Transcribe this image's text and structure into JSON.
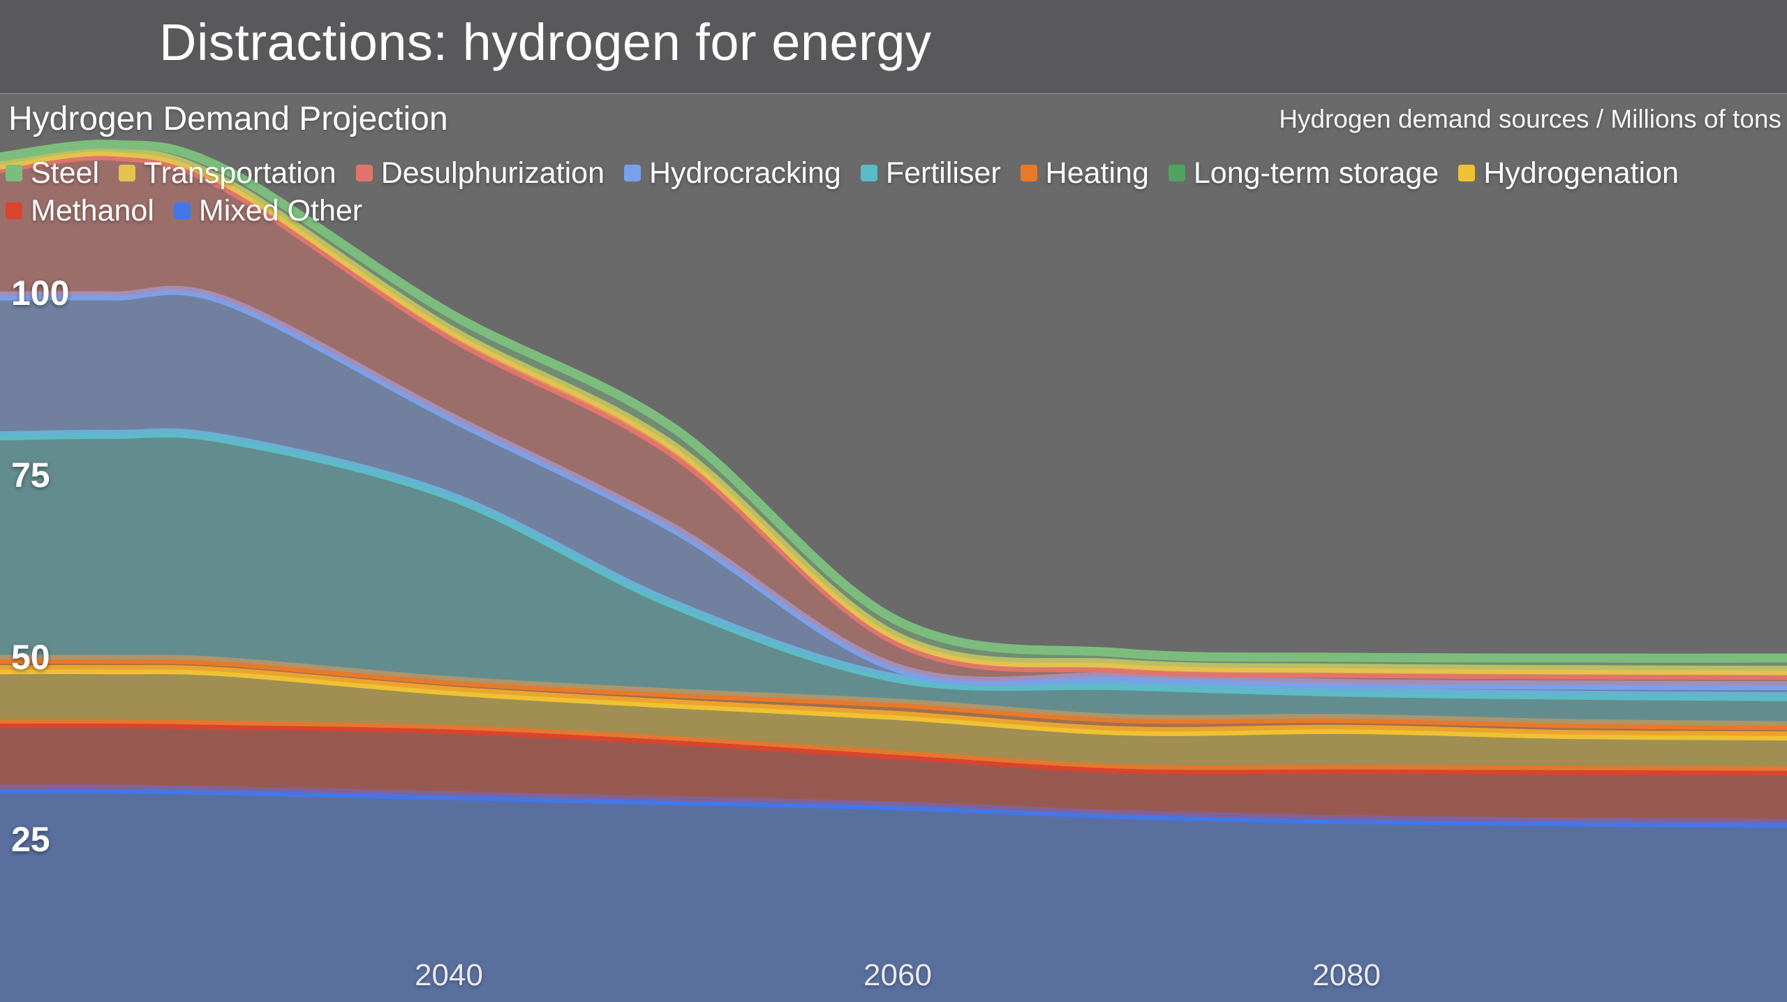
{
  "header": {
    "title": "Distractions: hydrogen for energy"
  },
  "chart": {
    "title": "Hydrogen Demand Projection",
    "units_label": "Hydrogen demand sources / Millions of tons",
    "colors": {
      "page_background": "#6A6A6A",
      "header_background": "#59595B",
      "header_divider": "#7E7E80",
      "text": "#FFFFFF",
      "tick_text": "#E9E9EC"
    }
  },
  "chart_data": {
    "type": "area",
    "stacked": true,
    "title": "Hydrogen Demand Projection",
    "xlabel": "",
    "ylabel": "Millions of tons",
    "x": [
      2020,
      2025,
      2030,
      2040,
      2050,
      2060,
      2070,
      2080,
      2090,
      2100
    ],
    "x_ticks": [
      2040,
      2060,
      2080
    ],
    "y_ticks": [
      25,
      50,
      75,
      100
    ],
    "xlim": [
      2020,
      2100
    ],
    "ylim": [
      0,
      127
    ],
    "grid": false,
    "legend_position": "top-left, two rows, first series stacks on top",
    "fill_opacity": 0.42,
    "line_width": 13,
    "series": [
      {
        "name": "Steel",
        "color": "#7CBD7E",
        "values": [
          1.1,
          1.0,
          1.7,
          2.2,
          2.5,
          2.2,
          1.5,
          1.5,
          1.6,
          1.7
        ]
      },
      {
        "name": "Transportation",
        "color": "#E5C14E",
        "values": [
          0.5,
          0.6,
          0.7,
          0.9,
          1.0,
          0.7,
          0.7,
          0.7,
          0.7,
          0.7
        ]
      },
      {
        "name": "Desulphurization",
        "color": "#E0756C",
        "values": [
          17.5,
          19.2,
          15.6,
          11.1,
          10.3,
          3.6,
          1.1,
          1.4,
          1.4,
          1.4
        ]
      },
      {
        "name": "Hydrocracking",
        "color": "#7BA0EA",
        "values": [
          19.2,
          19.0,
          19.0,
          10.9,
          10.4,
          1.4,
          1.2,
          1.2,
          1.4,
          1.5
        ]
      },
      {
        "name": "Fertiliser",
        "color": "#5ABCC4",
        "values": [
          30.7,
          30.9,
          30.6,
          25.4,
          12.2,
          3.4,
          4.5,
          3.6,
          3.9,
          4.0
        ]
      },
      {
        "name": "Heating",
        "color": "#E8792B",
        "values": [
          1.4,
          1.4,
          1.4,
          1.4,
          1.5,
          1.7,
          1.7,
          1.5,
          1.5,
          1.4
        ]
      },
      {
        "name": "Long-term storage",
        "color": "#4FA35F",
        "values": [
          0,
          0,
          0,
          0,
          0,
          0,
          0,
          0,
          0,
          0
        ]
      },
      {
        "name": "Hydrogenation",
        "color": "#EEC233",
        "values": [
          7.4,
          7.4,
          7.3,
          5.3,
          5.0,
          5.4,
          5.2,
          5.5,
          4.9,
          4.8
        ]
      },
      {
        "name": "Methanol",
        "color": "#D9442E",
        "values": [
          9.0,
          9.0,
          9.0,
          9.1,
          8.3,
          7.0,
          6.3,
          6.9,
          7.1,
          7.2
        ]
      },
      {
        "name": "Mixed Other",
        "color": "#4377E8",
        "values": [
          31.9,
          31.9,
          31.7,
          31.0,
          30.3,
          29.6,
          28.4,
          27.7,
          27.4,
          27.2
        ]
      }
    ],
    "totals_by_x": [
      118.7,
      120.4,
      117.0,
      97.3,
      81.5,
      55.0,
      50.6,
      50.0,
      49.9,
      49.9
    ]
  }
}
